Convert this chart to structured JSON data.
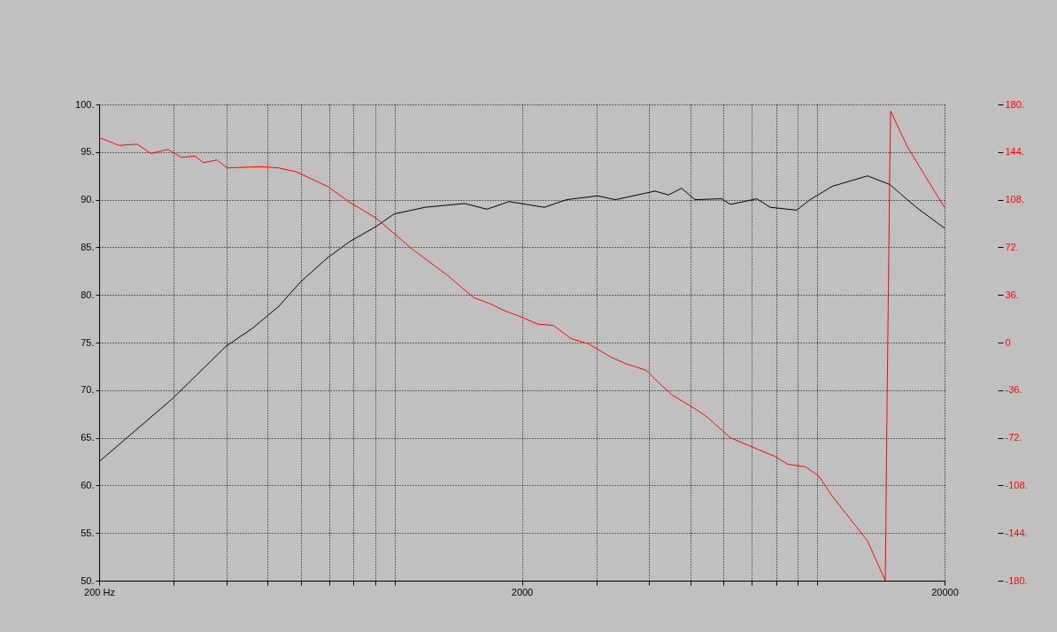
{
  "chart_data": {
    "type": "line",
    "log": "x",
    "grid": true,
    "xlim": [
      200,
      20000
    ],
    "xticks": [
      {
        "value": 200,
        "label": "200 Hz"
      },
      {
        "value": 300,
        "label": null
      },
      {
        "value": 400,
        "label": null
      },
      {
        "value": 500,
        "label": null
      },
      {
        "value": 600,
        "label": null
      },
      {
        "value": 700,
        "label": null
      },
      {
        "value": 800,
        "label": null
      },
      {
        "value": 900,
        "label": null
      },
      {
        "value": 1000,
        "label": null
      },
      2000,
      {
        "value": 3000,
        "label": null
      },
      {
        "value": 4000,
        "label": null
      },
      {
        "value": 5000,
        "label": null
      },
      {
        "value": 6000,
        "label": null
      },
      {
        "value": 7000,
        "label": null
      },
      {
        "value": 8000,
        "label": null
      },
      {
        "value": 9000,
        "label": null
      },
      {
        "value": 10000,
        "label": null
      },
      20000
    ],
    "ylim": [
      50,
      100
    ],
    "yticks": [
      {
        "value": 50,
        "label": "50."
      },
      {
        "value": 55,
        "label": "55."
      },
      {
        "value": 60,
        "label": "60."
      },
      {
        "value": 65,
        "label": "65."
      },
      {
        "value": 70,
        "label": "70."
      },
      {
        "value": 75,
        "label": "75."
      },
      {
        "value": 80,
        "label": "80."
      },
      {
        "value": 85,
        "label": "85."
      },
      {
        "value": 90,
        "label": "90."
      },
      {
        "value": 95,
        "label": "95."
      },
      {
        "value": 100,
        "label": "100."
      }
    ],
    "y2lim": [
      -180,
      180
    ],
    "y2ticks": [
      {
        "value": -180,
        "label": "-180."
      },
      {
        "value": -144,
        "label": "-144."
      },
      {
        "value": -108,
        "label": "-108."
      },
      {
        "value": -72,
        "label": "-72."
      },
      {
        "value": -36,
        "label": "-36."
      },
      {
        "value": 0,
        "label": "0"
      },
      {
        "value": 36,
        "label": "36."
      },
      {
        "value": 72,
        "label": "72."
      },
      {
        "value": 108,
        "label": "108."
      },
      {
        "value": 144,
        "label": "144."
      },
      {
        "value": 180,
        "label": "180."
      }
    ],
    "series": [
      {
        "color": "#000000",
        "x": [
          200,
          234,
          298,
          399,
          461,
          532,
          600,
          694,
          783,
          905,
          997,
          1180,
          1465,
          1653,
          1865,
          2262,
          2552,
          3022,
          3327,
          4133,
          4443,
          4775,
          5134,
          5935,
          6227,
          7194,
          7736,
          8940,
          9611,
          10840,
          13146,
          14836,
          17140,
          20000
        ],
        "values": [
          62.5,
          65.1,
          69.1,
          74.6,
          76.5,
          78.8,
          81.4,
          83.9,
          85.6,
          87.2,
          88.5,
          89.2,
          89.6,
          89.0,
          89.8,
          89.2,
          90.0,
          90.4,
          90.0,
          90.9,
          90.5,
          91.2,
          90.0,
          90.1,
          89.5,
          90.1,
          89.2,
          88.9,
          90.0,
          91.4,
          92.5,
          91.6,
          89.2,
          87.0
        ]
      },
      {
        "color": "#ff0000",
        "axis": "y2",
        "x": [
          200,
          223,
          246,
          265,
          291,
          313,
          337,
          353,
          380,
          402,
          483,
          532,
          586,
          694,
          783,
          905,
          1097,
          1331,
          1538,
          1693,
          1821,
          2006,
          2176,
          2374,
          2614,
          2878,
          3248,
          3526,
          3938,
          4234,
          4550,
          5134,
          5518,
          6227,
          7926,
          8518,
          9384,
          10086,
          10840,
          11938,
          13146,
          14482,
          14622,
          14836,
          14908,
          16332,
          17990,
          20000
        ],
        "values": [
          155,
          149,
          150,
          143,
          146,
          140,
          141,
          136,
          138,
          132,
          133,
          132,
          129,
          118,
          106,
          94,
          71,
          51,
          34,
          29,
          24,
          19,
          14,
          13,
          3,
          -1,
          -11,
          -16,
          -21,
          -31,
          -40,
          -50,
          -57,
          -72,
          -86,
          -92,
          -94,
          -101,
          -116,
          -133,
          -150,
          -180,
          -46,
          128,
          175,
          148,
          126,
          102
        ]
      }
    ]
  }
}
